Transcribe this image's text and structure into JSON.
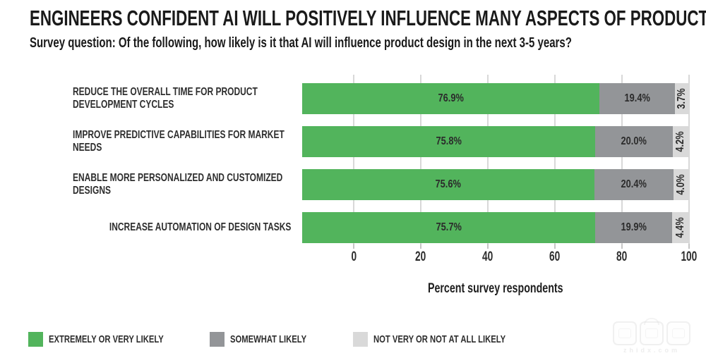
{
  "title": "ENGINEERS CONFIDENT AI WILL POSITIVELY INFLUENCE MANY ASPECTS OF PRODUCT DESIGN",
  "subtitle": "Survey question: Of the following, how likely is it that AI will influence product design in the next 3-5 years?",
  "chart_data": {
    "type": "bar",
    "orientation": "horizontal",
    "stacked": true,
    "title": "ENGINEERS CONFIDENT AI WILL POSITIVELY INFLUENCE MANY ASPECTS OF PRODUCT DESIGN",
    "subtitle": "Survey question: Of the following, how likely is it that AI will influence product design in the next 3-5 years?",
    "categories": [
      "REDUCE THE OVERALL TIME FOR PRODUCT DEVELOPMENT CYCLES",
      "IMPROVE PREDICTIVE CAPABILITIES FOR MARKET NEEDS",
      "ENABLE MORE PERSONALIZED AND CUSTOMIZED DESIGNS",
      "INCREASE AUTOMATION OF DESIGN TASKS"
    ],
    "series": [
      {
        "name": "EXTREMELY OR VERY LIKELY",
        "color": "#52b45c",
        "values": [
          76.9,
          75.8,
          75.6,
          75.7
        ]
      },
      {
        "name": "SOMEWHAT LIKELY",
        "color": "#939598",
        "values": [
          19.4,
          20.0,
          20.4,
          19.9
        ]
      },
      {
        "name": "NOT VERY OR NOT AT ALL LIKELY",
        "color": "#d9d9d9",
        "values": [
          3.7,
          4.2,
          4.0,
          4.4
        ]
      }
    ],
    "value_labels": [
      [
        "76.9%",
        "19.4%",
        "3.7%"
      ],
      [
        "75.8%",
        "20.0%",
        "4.2%"
      ],
      [
        "75.6%",
        "20.4%",
        "4.0%"
      ],
      [
        "75.7%",
        "19.9%",
        "4.4%"
      ]
    ],
    "xlabel": "Percent survey respondents",
    "x_ticks": [
      "0",
      "20",
      "40",
      "60",
      "80",
      "100"
    ],
    "xlim": [
      0,
      100
    ],
    "grid": true,
    "legend_position": "bottom"
  },
  "legend": {
    "items": [
      {
        "label": "EXTREMELY OR VERY LIKELY",
        "color": "#52b45c"
      },
      {
        "label": "SOMEWHAT LIKELY",
        "color": "#939598"
      },
      {
        "label": "NOT VERY OR NOT AT ALL LIKELY",
        "color": "#d9d9d9"
      }
    ]
  },
  "watermark": {
    "logo_chars": "智東西",
    "text": "zhidx.com"
  }
}
